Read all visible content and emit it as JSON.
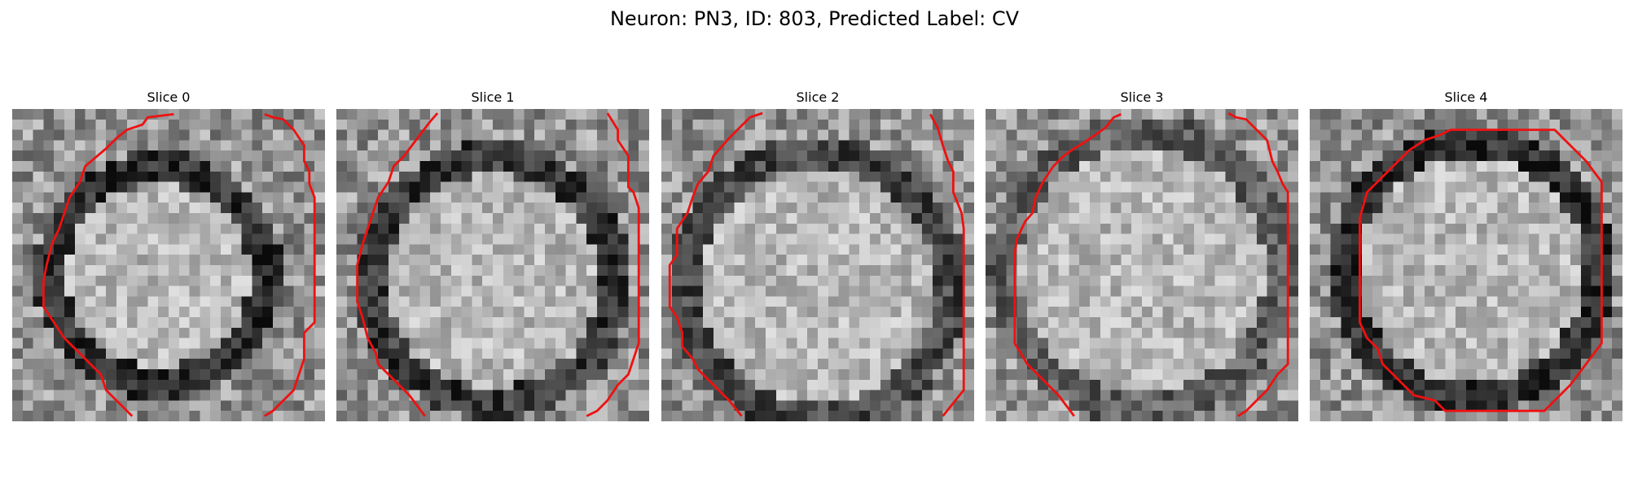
{
  "title": "Neuron: PN3, ID: 803, Predicted Label: CV",
  "colors": {
    "contour": "#ee1111",
    "background": "#ffffff",
    "text": "#000000"
  },
  "panels": [
    {
      "label": "Slice 0"
    },
    {
      "label": "Slice 1"
    },
    {
      "label": "Slice 2"
    },
    {
      "label": "Slice 3"
    },
    {
      "label": "Slice 4"
    }
  ]
}
